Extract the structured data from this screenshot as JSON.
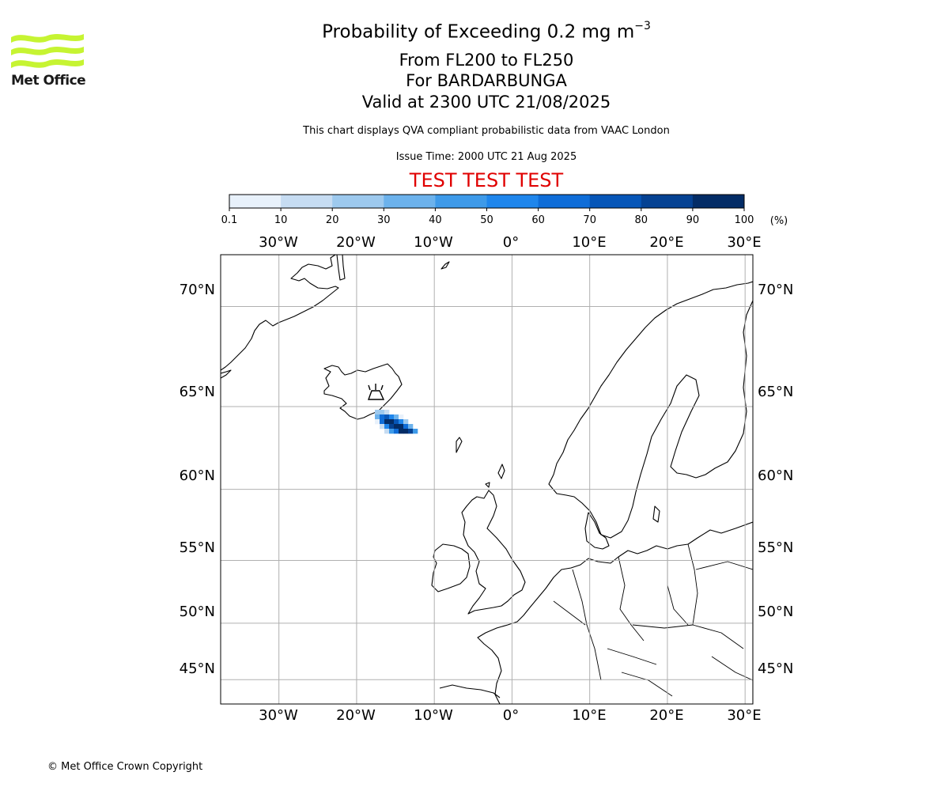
{
  "logo": {
    "text": "Met Office",
    "color": "#c6f432"
  },
  "header": {
    "title_main": "Probability of Exceeding 0.2 mg m",
    "title_sup": "−3",
    "flight_levels": "From FL200 to FL250",
    "volcano": "For BARDARBUNGA",
    "valid_time": "Valid at 2300 UTC 21/08/2025",
    "disclaimer": "This chart displays QVA compliant probabilistic data from VAAC London",
    "issue_time": "Issue Time: 2000 UTC 21 Aug 2025",
    "test_banner": "TEST TEST TEST",
    "test_color": "#e00000"
  },
  "colorbar": {
    "ticks": [
      "0.1",
      "10",
      "20",
      "30",
      "40",
      "50",
      "60",
      "70",
      "80",
      "90",
      "100"
    ],
    "unit": "(%)",
    "colors": [
      "#e8f1fb",
      "#c6dcf2",
      "#9dc9ee",
      "#6cb2ec",
      "#3e9ae9",
      "#1f86ec",
      "#0f6dd8",
      "#0656b8",
      "#054293",
      "#032c66"
    ]
  },
  "map": {
    "lon_range": [
      -37.5,
      31
    ],
    "lat_range": [
      42.7,
      72.2
    ],
    "projection": "mercator",
    "lon_ticks": [
      "30°W",
      "20°W",
      "10°W",
      "0°",
      "10°E",
      "20°E",
      "30°E"
    ],
    "lat_ticks": [
      "70°N",
      "65°N",
      "60°N",
      "55°N",
      "50°N",
      "45°N"
    ],
    "volcano_lat": 64.64,
    "volcano_lon": -17.53,
    "plume_center_path": [
      [
        -17.0,
        64.5
      ],
      [
        -16.0,
        64.2
      ],
      [
        -14.5,
        63.8
      ],
      [
        -13.0,
        63.4
      ],
      [
        -11.8,
        63.0
      ]
    ]
  },
  "footer": {
    "copyright": "© Met Office Crown Copyright"
  }
}
